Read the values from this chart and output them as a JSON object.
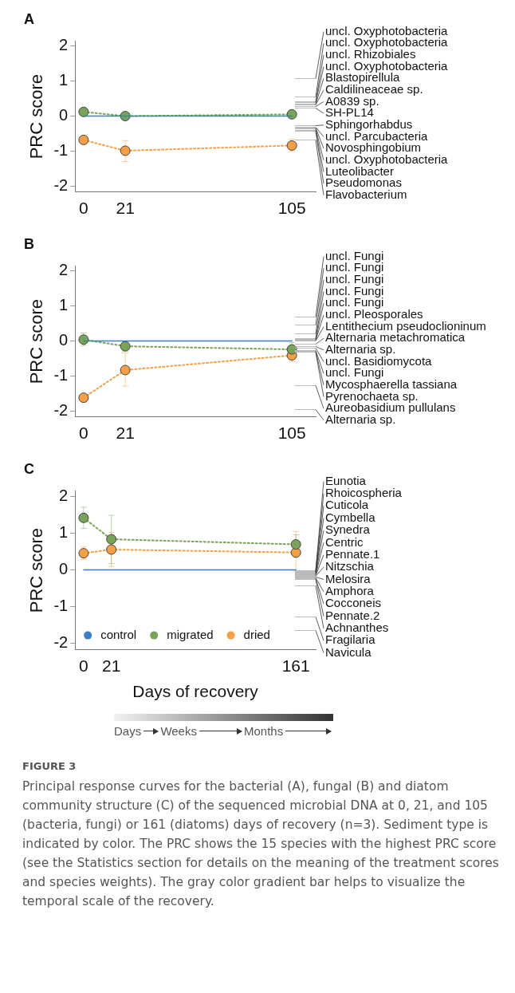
{
  "chart_data": [
    {
      "type": "line",
      "title": "A",
      "ylabel": "PRC score",
      "x": [
        0,
        21,
        105
      ],
      "xlim": [
        -4.3,
        117
      ],
      "xticks": [
        0,
        21,
        105
      ],
      "ylim": [
        -2.17,
        2.14
      ],
      "yticks": [
        -2,
        -1,
        0,
        1,
        2
      ],
      "grid": false,
      "marker": "circle",
      "line_style": "dotted",
      "series": [
        {
          "color": "#3a7dc9",
          "values": [
            0,
            0,
            0
          ],
          "line_style": "solid",
          "marker": "none"
        },
        {
          "color": "#7aa35a",
          "values": [
            0.12,
            0.0,
            0.05
          ]
        },
        {
          "color": "#f5a046",
          "values": [
            -0.68,
            -0.99,
            -0.84
          ],
          "errors": [
            null,
            [
              -1.3,
              -0.7
            ],
            [
              -1.01,
              -0.66
            ]
          ]
        }
      ],
      "ref_lines": [
        {
          "axis": "y",
          "value": 1.09,
          "label": "uncl. Oxyphotobacteria",
          "color": "#bbbbbb"
        },
        {
          "axis": "y",
          "value": 0.57,
          "label": "uncl. Oxyphotobacteria",
          "color": "#bbbbbb"
        },
        {
          "axis": "y",
          "value": 0.43,
          "label": "uncl. Rhizobiales",
          "color": "#bbbbbb"
        },
        {
          "axis": "y",
          "value": 0.39,
          "label": "uncl. Oxyphotobacteria",
          "color": "#bbbbbb"
        },
        {
          "axis": "y",
          "value": 0.36,
          "label": "Blastopirellula",
          "color": "#bbbbbb"
        },
        {
          "axis": "y",
          "value": 0.33,
          "label": "Caldilineaceae sp.",
          "color": "#bbbbbb"
        },
        {
          "axis": "y",
          "value": 0.29,
          "label": "A0839 sp.",
          "color": "#bbbbbb"
        },
        {
          "axis": "y",
          "value": 0.25,
          "label": "SH-PL14",
          "color": "#bbbbbb"
        },
        {
          "axis": "y",
          "value": -0.27,
          "label": "Sphingorhabdus",
          "color": "#bbbbbb"
        },
        {
          "axis": "y",
          "value": -0.3,
          "label": "uncl. Parcubacteria",
          "color": "#bbbbbb"
        },
        {
          "axis": "y",
          "value": -0.33,
          "label": "Novosphingobium",
          "color": "#bbbbbb"
        },
        {
          "axis": "y",
          "value": -0.36,
          "label": "uncl. Oxyphotobacteria",
          "color": "#bbbbbb"
        },
        {
          "axis": "y",
          "value": -0.39,
          "label": "Luteolibacter",
          "color": "#bbbbbb"
        },
        {
          "axis": "y",
          "value": -0.42,
          "label": "Pseudomonas",
          "color": "#bbbbbb"
        },
        {
          "axis": "y",
          "value": -0.67,
          "label": "Flavobacterium",
          "color": "#bbbbbb"
        }
      ]
    },
    {
      "type": "line",
      "title": "B",
      "ylabel": "PRC score",
      "x": [
        0,
        21,
        105
      ],
      "xlim": [
        -4.3,
        117
      ],
      "xticks": [
        0,
        21,
        105
      ],
      "ylim": [
        -2.17,
        2.14
      ],
      "yticks": [
        -2,
        -1,
        0,
        1,
        2
      ],
      "grid": false,
      "marker": "circle",
      "line_style": "dotted",
      "series": [
        {
          "color": "#3a7dc9",
          "values": [
            0,
            0,
            0
          ],
          "line_style": "solid",
          "marker": "none"
        },
        {
          "color": "#7aa35a",
          "values": [
            0.04,
            -0.15,
            -0.24
          ],
          "errors": [
            [
              -0.13,
              0.23
            ],
            [
              -0.29,
              -0.03
            ],
            [
              -0.43,
              -0.05
            ]
          ]
        },
        {
          "color": "#f5a046",
          "values": [
            -1.62,
            -0.83,
            -0.41
          ],
          "errors": [
            null,
            [
              -1.29,
              -0.34
            ],
            [
              -0.59,
              -0.41
            ]
          ]
        }
      ],
      "ref_lines": [
        {
          "axis": "y",
          "value": 0.7,
          "label": "uncl. Fungi",
          "color": "#bbbbbb"
        },
        {
          "axis": "y",
          "value": 0.46,
          "label": "uncl. Fungi",
          "color": "#bbbbbb"
        },
        {
          "axis": "y",
          "value": 0.21,
          "label": "uncl. Fungi",
          "color": "#bbbbbb"
        },
        {
          "axis": "y",
          "value": 0.08,
          "label": "uncl. Fungi",
          "color": "#bbbbbb"
        },
        {
          "axis": "y",
          "value": 0.06,
          "label": "uncl. Fungi",
          "color": "#bbbbbb"
        },
        {
          "axis": "y",
          "value": 0.04,
          "label": "uncl. Pleosporales",
          "color": "#bbbbbb"
        },
        {
          "axis": "y",
          "value": 0.02,
          "label": "Lentithecium pseudoclioninum",
          "color": "#bbbbbb"
        },
        {
          "axis": "y",
          "value": -0.08,
          "label": "Alternaria metachromatica",
          "color": "#bbbbbb"
        },
        {
          "axis": "y",
          "value": -0.15,
          "label": "Alternaria sp.",
          "color": "#bbbbbb"
        },
        {
          "axis": "y",
          "value": -0.2,
          "label": "uncl. Basidiomycota",
          "color": "#bbbbbb"
        },
        {
          "axis": "y",
          "value": -0.25,
          "label": "uncl. Fungi",
          "color": "#bbbbbb"
        },
        {
          "axis": "y",
          "value": -0.28,
          "label": "Mycosphaerella tassiana",
          "color": "#bbbbbb"
        },
        {
          "axis": "y",
          "value": -0.3,
          "label": "Pyrenochaeta sp.",
          "color": "#bbbbbb"
        },
        {
          "axis": "y",
          "value": -1.26,
          "label": "Aureobasidium pullulans",
          "color": "#bbbbbb"
        },
        {
          "axis": "y",
          "value": -1.95,
          "label": "Alternaria sp.",
          "color": "#bbbbbb"
        }
      ]
    },
    {
      "type": "line",
      "title": "C",
      "ylabel": "PRC score",
      "xlabel": "Days of recovery",
      "x": [
        0,
        21,
        161
      ],
      "xlim": [
        -6.5,
        176
      ],
      "xticks": [
        0,
        21,
        161
      ],
      "ylim": [
        -2.17,
        2.14
      ],
      "yticks": [
        -2,
        -1,
        0,
        1,
        2
      ],
      "grid": false,
      "legend": "bottom left",
      "marker": "circle",
      "line_style": "dotted",
      "series": [
        {
          "name": "control",
          "color": "#3a7dc9",
          "values": [
            0,
            0,
            0
          ],
          "line_style": "solid",
          "marker": "none"
        },
        {
          "name": "migrated",
          "color": "#7aa35a",
          "values": [
            1.41,
            0.83,
            0.69
          ],
          "errors": [
            [
              1.12,
              1.7
            ],
            [
              0.17,
              1.48
            ],
            [
              0.4,
              0.95
            ]
          ]
        },
        {
          "name": "dried",
          "color": "#f5a046",
          "values": [
            0.45,
            0.55,
            0.47
          ],
          "errors": [
            [
              0.28,
              0.62
            ],
            [
              0.09,
              1.01
            ],
            [
              -0.05,
              1.04
            ]
          ]
        }
      ],
      "ref_lines": [
        {
          "axis": "y",
          "value": -0.02,
          "label": "Eunotia",
          "color": "#bbbbbb"
        },
        {
          "axis": "y",
          "value": -0.04,
          "label": "Rhoicospheria",
          "color": "#bbbbbb"
        },
        {
          "axis": "y",
          "value": -0.06,
          "label": "Cuticola",
          "color": "#bbbbbb"
        },
        {
          "axis": "y",
          "value": -0.08,
          "label": "Cymbella",
          "color": "#bbbbbb"
        },
        {
          "axis": "y",
          "value": -0.1,
          "label": "Synedra",
          "color": "#bbbbbb"
        },
        {
          "axis": "y",
          "value": -0.12,
          "label": "Centric",
          "color": "#bbbbbb"
        },
        {
          "axis": "y",
          "value": -0.14,
          "label": "Pennate.1",
          "color": "#bbbbbb"
        },
        {
          "axis": "y",
          "value": -0.16,
          "label": "Nitzschia",
          "color": "#bbbbbb"
        },
        {
          "axis": "y",
          "value": -0.18,
          "label": "Melosira",
          "color": "#bbbbbb"
        },
        {
          "axis": "y",
          "value": -0.2,
          "label": "Amphora",
          "color": "#bbbbbb"
        },
        {
          "axis": "y",
          "value": -0.23,
          "label": "Cocconeis",
          "color": "#bbbbbb"
        },
        {
          "axis": "y",
          "value": -0.26,
          "label": "Pennate.2",
          "color": "#bbbbbb"
        },
        {
          "axis": "y",
          "value": -0.43,
          "label": "Achnanthes",
          "color": "#bbbbbb"
        },
        {
          "axis": "y",
          "value": -1.27,
          "label": "Fragilaria",
          "color": "#bbbbbb"
        },
        {
          "axis": "y",
          "value": -1.63,
          "label": "Navicula",
          "color": "#bbbbbb"
        }
      ],
      "annotations": [
        "Days",
        "Weeks",
        "Months",
        "FIGURE 3",
        "Principal response curves for the bacterial (A), fungal (B) and diatom community structure (C) of the sequenced microbial DNA at 0, 21, and 105 (bacteria, fungi) or 161 (diatoms) days of recovery (n=3). Sediment type is indicated by color. The PRC shows the 15 species with the highest PRC score (see the Statistics section for details on the meaning of the treatment scores and species weights). The gray color gradient bar helps to visualize the temporal scale of the recovery."
      ]
    }
  ]
}
